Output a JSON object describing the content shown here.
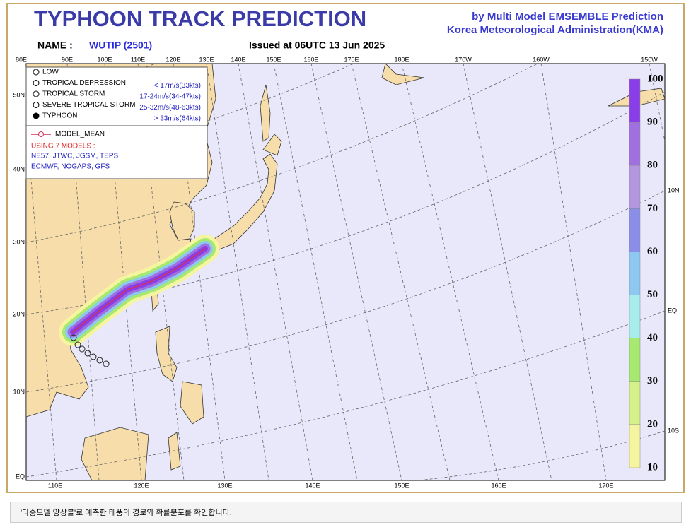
{
  "header": {
    "title": "TYPHOON TRACK PREDICTION",
    "subtitle_1": "by Multi Model EMSEMBLE Prediction",
    "subtitle_2": "Korea Meteorological Administration(KMA)",
    "name_label": "NAME :",
    "name": "WUTIP (2501)",
    "issued": "Issued at  06UTC 13 Jun 2025"
  },
  "map": {
    "top_lon_labels": [
      "80E",
      "90E",
      "100E",
      "110E",
      "120E",
      "130E",
      "140E",
      "150E",
      "160E",
      "170E",
      "180E",
      "170W",
      "160W",
      "150W"
    ],
    "left_lat_labels": [
      "50N",
      "40N",
      "30N",
      "20N",
      "10N",
      "EQ"
    ],
    "right_lat_labels": [
      "10N",
      "EQ",
      "10S"
    ],
    "bottom_lon_labels": [
      "110E",
      "120E",
      "130E",
      "140E",
      "150E",
      "160E",
      "170E"
    ]
  },
  "legend": {
    "categories": [
      {
        "name": "LOW",
        "range": ""
      },
      {
        "name": "TROPICAL DEPRESSION",
        "range": "< 17m/s(33kts)"
      },
      {
        "name": "TROPICAL STORM",
        "range": "17-24m/s(34-47kts)"
      },
      {
        "name": "SEVERE TROPICAL STORM",
        "range": "25-32m/s(48-63kts)"
      },
      {
        "name": "TYPHOON",
        "range": "> 33m/s(64kts)"
      }
    ],
    "mean": "MODEL_MEAN",
    "models_title": "USING 7 MODELS :",
    "models_1": "NE57, JTWC, JGSM, TEPS",
    "models_2": "ECMWF, NOGAPS, GFS"
  },
  "colorbar": {
    "labels": [
      100,
      90,
      80,
      70,
      60,
      50,
      40,
      30,
      20,
      10
    ],
    "colors": [
      "#8a3ee8",
      "#a070e0",
      "#b496e0",
      "#8a8ee8",
      "#8cc8f0",
      "#a8ecec",
      "#a6e870",
      "#d6f08a",
      "#f5f5a0"
    ]
  },
  "caption": "'다중모델 앙상블'로 예측한 태풍의 경로와 확률분포를 확인합니다."
}
